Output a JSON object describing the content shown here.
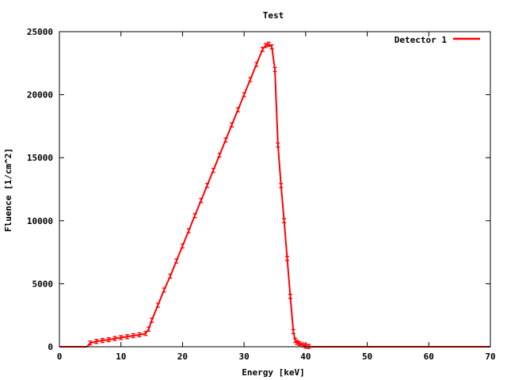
{
  "chart_data": {
    "type": "line",
    "title": "Test",
    "xlabel": "Energy [keV]",
    "ylabel": "Fluence [1/cm^2]",
    "xlim": [
      0,
      70
    ],
    "ylim": [
      0,
      25000
    ],
    "x_ticks": [
      0,
      10,
      20,
      30,
      40,
      50,
      60,
      70
    ],
    "y_ticks": [
      0,
      5000,
      10000,
      15000,
      20000,
      25000
    ],
    "legend_position": "top-right",
    "grid": false,
    "series": [
      {
        "name": "Detector 1",
        "color": "#ff0000",
        "x": [
          0,
          1,
          2,
          3,
          4,
          4.5,
          5,
          6,
          7,
          8,
          9,
          10,
          11,
          12,
          13,
          14,
          14.5,
          15,
          16,
          17,
          18,
          19,
          20,
          21,
          22,
          23,
          24,
          25,
          26,
          27,
          28,
          29,
          30,
          31,
          32,
          33,
          33.5,
          34,
          34.5,
          35,
          35.5,
          36,
          36.5,
          37,
          37.5,
          38,
          38.3,
          38.6,
          39,
          39.5,
          40,
          40.5,
          41,
          45,
          50,
          55,
          60,
          65,
          70
        ],
        "y": [
          0,
          0,
          0,
          0,
          0,
          0,
          300,
          420,
          500,
          560,
          650,
          730,
          800,
          880,
          950,
          1050,
          1400,
          2100,
          3300,
          4500,
          5600,
          6800,
          8000,
          9200,
          10400,
          11600,
          12800,
          14000,
          15200,
          16400,
          17600,
          18800,
          20000,
          21200,
          22400,
          23600,
          23900,
          24000,
          23800,
          22000,
          16000,
          12800,
          10000,
          7000,
          4000,
          1200,
          500,
          350,
          250,
          150,
          60,
          20,
          0,
          0,
          0,
          0,
          0,
          0,
          0
        ]
      }
    ]
  }
}
